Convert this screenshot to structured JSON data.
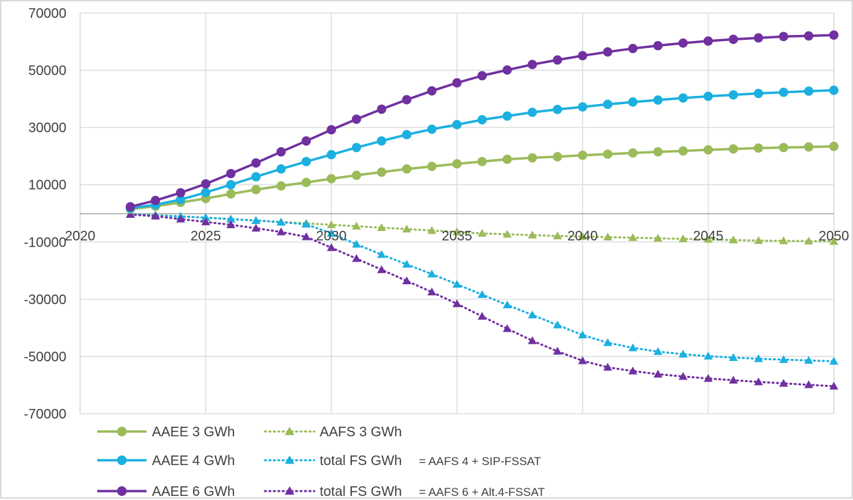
{
  "chart_data": {
    "type": "line",
    "title": "",
    "xlabel": "",
    "ylabel": "",
    "xlim": [
      2020,
      2050
    ],
    "ylim": [
      -70000,
      70000
    ],
    "grid": true,
    "legend_position": "bottom",
    "x_ticks": [
      "2020",
      "2025",
      "2030",
      "2035",
      "2040",
      "2045",
      "2050"
    ],
    "y_ticks": [
      "70000",
      "50000",
      "30000",
      "10000",
      "-10000",
      "-30000",
      "-50000",
      "-70000"
    ],
    "x": [
      2022,
      2023,
      2024,
      2025,
      2026,
      2027,
      2028,
      2029,
      2030,
      2031,
      2032,
      2033,
      2034,
      2035,
      2036,
      2037,
      2038,
      2039,
      2040,
      2041,
      2042,
      2043,
      2044,
      2045,
      2046,
      2047,
      2048,
      2049,
      2050
    ],
    "series": [
      {
        "name": "AAEE 3 GWh",
        "color": "#9bbb59",
        "style": "solid",
        "marker": "circle",
        "values": [
          1500,
          2500,
          3800,
          5200,
          6800,
          8300,
          9600,
          10800,
          12100,
          13300,
          14400,
          15500,
          16400,
          17300,
          18100,
          18900,
          19400,
          19800,
          20300,
          20700,
          21100,
          21500,
          21800,
          22200,
          22500,
          22800,
          23000,
          23200,
          23400
        ]
      },
      {
        "name": "AAEE 4 GWh",
        "color": "#1cb0e0",
        "style": "solid",
        "marker": "circle",
        "values": [
          1800,
          3000,
          4800,
          7300,
          10000,
          12800,
          15500,
          18100,
          20500,
          23000,
          25300,
          27500,
          29400,
          31000,
          32700,
          34000,
          35300,
          36300,
          37200,
          38100,
          38900,
          39600,
          40300,
          40900,
          41400,
          41900,
          42300,
          42700,
          43000
        ]
      },
      {
        "name": "AAEE 6 GWh",
        "color": "#7030a0",
        "style": "solid",
        "marker": "circle",
        "values": [
          2300,
          4500,
          7200,
          10300,
          13900,
          17600,
          21500,
          25300,
          29200,
          32900,
          36400,
          39700,
          42800,
          45600,
          48100,
          50100,
          52000,
          53600,
          55100,
          56400,
          57600,
          58600,
          59500,
          60200,
          60800,
          61300,
          61800,
          62000,
          62300
        ]
      },
      {
        "name": "AAFS 3 GWh",
        "color": "#9bbb59",
        "style": "dotted",
        "marker": "triangle",
        "values": [
          -300,
          -600,
          -1000,
          -1500,
          -2000,
          -2500,
          -3000,
          -3500,
          -4000,
          -4500,
          -5000,
          -5500,
          -6000,
          -6500,
          -7000,
          -7300,
          -7600,
          -7900,
          -8100,
          -8300,
          -8500,
          -8700,
          -8900,
          -9100,
          -9300,
          -9500,
          -9600,
          -9700,
          -9800
        ]
      },
      {
        "name": "total FS GWh",
        "suffix": "= AAFS 4 +  SIP-FSSAT",
        "color": "#1cb0e0",
        "style": "dotted",
        "marker": "triangle",
        "values": [
          -300,
          -700,
          -1100,
          -1500,
          -2000,
          -2500,
          -3100,
          -3800,
          -7000,
          -10800,
          -14400,
          -17800,
          -21200,
          -24800,
          -28400,
          -32000,
          -35500,
          -39000,
          -42500,
          -45200,
          -47000,
          -48300,
          -49200,
          -49900,
          -50400,
          -50800,
          -51100,
          -51400,
          -51700
        ]
      },
      {
        "name": "total FS GWh",
        "suffix": "= AAFS 6 + Alt.4-FSSAT",
        "color": "#7030a0",
        "style": "dotted",
        "marker": "triangle",
        "values": [
          -400,
          -1000,
          -2000,
          -3000,
          -4000,
          -5200,
          -6500,
          -8200,
          -12000,
          -15800,
          -19700,
          -23600,
          -27500,
          -31600,
          -36000,
          -40300,
          -44500,
          -48200,
          -51500,
          -53800,
          -55100,
          -56200,
          -57000,
          -57700,
          -58300,
          -58900,
          -59400,
          -59900,
          -60400
        ]
      }
    ]
  }
}
